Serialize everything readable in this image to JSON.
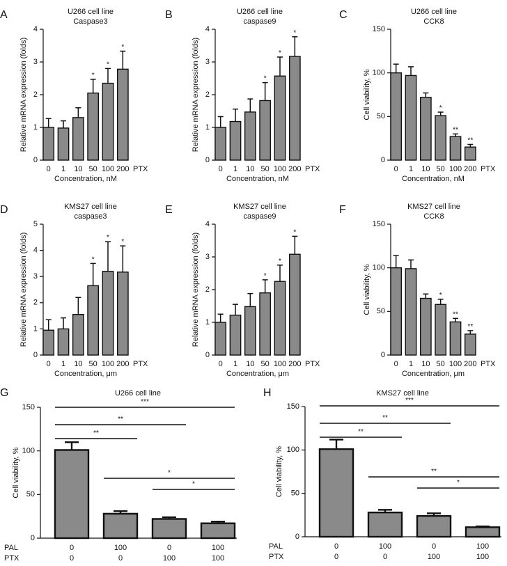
{
  "chart_data": [
    {
      "id": "A",
      "letter": "A",
      "type": "bar",
      "title": "U266 cell line",
      "subtitle": "Caspase3",
      "ylabel": "Relative mRNA expression (folds)",
      "xlabel": "Concentration, nM",
      "extra_label": "PTX",
      "categories": [
        "0",
        "1",
        "10",
        "50",
        "100",
        "200"
      ],
      "values": [
        1.0,
        0.98,
        1.3,
        2.05,
        2.35,
        2.78
      ],
      "errors": [
        0.27,
        0.22,
        0.3,
        0.42,
        0.45,
        0.55
      ],
      "significance": [
        "",
        "",
        "",
        "*",
        "*",
        "*"
      ],
      "ylim": [
        0,
        4
      ],
      "yticks": [
        "0",
        "1",
        "2",
        "3",
        "4"
      ]
    },
    {
      "id": "B",
      "letter": "B",
      "type": "bar",
      "title": "U266 cell line",
      "subtitle": "caspase9",
      "ylabel": "Relative mRNA expression (folds)",
      "xlabel": "Concentration, nM",
      "extra_label": "PTX",
      "categories": [
        "0",
        "1",
        "10",
        "50",
        "100",
        "200"
      ],
      "values": [
        1.0,
        1.18,
        1.47,
        1.82,
        2.57,
        3.17
      ],
      "errors": [
        0.33,
        0.38,
        0.4,
        0.55,
        0.58,
        0.6
      ],
      "significance": [
        "",
        "",
        "",
        "*",
        "*",
        "*"
      ],
      "ylim": [
        0,
        4
      ],
      "yticks": [
        "0",
        "1",
        "2",
        "3",
        "4"
      ]
    },
    {
      "id": "C",
      "letter": "C",
      "type": "bar",
      "title": "U266 cell line",
      "subtitle": "CCK8",
      "ylabel": "Cell viability, %",
      "xlabel": "Concentration, nM",
      "extra_label": "PTX",
      "categories": [
        "0",
        "1",
        "10",
        "50",
        "100",
        "200"
      ],
      "values": [
        100,
        97,
        72,
        51,
        27,
        15
      ],
      "errors": [
        10,
        10,
        5,
        4,
        3,
        3
      ],
      "significance": [
        "",
        "",
        "",
        "*",
        "**",
        "**"
      ],
      "ylim": [
        0,
        150
      ],
      "yticks": [
        "0",
        "50",
        "100",
        "150"
      ]
    },
    {
      "id": "D",
      "letter": "D",
      "type": "bar",
      "title": "KMS27 cell line",
      "subtitle": "caspase3",
      "ylabel": "Relative mRNA expression (folds)",
      "xlabel": "Concentration, μm",
      "extra_label": "PTX",
      "categories": [
        "0",
        "1",
        "10",
        "50",
        "100",
        "200"
      ],
      "values": [
        0.95,
        1.0,
        1.55,
        2.65,
        3.2,
        3.17
      ],
      "errors": [
        0.4,
        0.42,
        0.65,
        0.85,
        1.13,
        1.0
      ],
      "significance": [
        "",
        "",
        "",
        "*",
        "*",
        "*"
      ],
      "ylim": [
        0,
        5
      ],
      "yticks": [
        "0",
        "1",
        "2",
        "3",
        "4",
        "5"
      ]
    },
    {
      "id": "E",
      "letter": "E",
      "type": "bar",
      "title": "KMS27 cell line",
      "subtitle": "caspase9",
      "ylabel": "Relative mRNA expression (folds)",
      "xlabel": "Concentration, μm",
      "extra_label": "PTX",
      "categories": [
        "0",
        "1",
        "10",
        "50",
        "100",
        "200"
      ],
      "values": [
        1.0,
        1.22,
        1.48,
        1.9,
        2.25,
        3.08
      ],
      "errors": [
        0.25,
        0.33,
        0.4,
        0.4,
        0.5,
        0.55
      ],
      "significance": [
        "",
        "",
        "",
        "*",
        "*",
        "*"
      ],
      "ylim": [
        0,
        4
      ],
      "yticks": [
        "0",
        "1",
        "2",
        "3",
        "4"
      ]
    },
    {
      "id": "F",
      "letter": "F",
      "type": "bar",
      "title": "KMS27 cell line",
      "subtitle": "CCK8",
      "ylabel": "Cell viability, %",
      "xlabel": "Concentration, μm",
      "extra_label": "PTX",
      "categories": [
        "0",
        "1",
        "10",
        "50",
        "100",
        "200"
      ],
      "values": [
        100,
        99,
        65,
        58,
        38,
        24
      ],
      "errors": [
        14,
        10,
        5,
        6,
        4,
        4
      ],
      "significance": [
        "",
        "",
        "",
        "*",
        "**",
        "**"
      ],
      "ylim": [
        0,
        150
      ],
      "yticks": [
        "0",
        "50",
        "100",
        "150"
      ]
    },
    {
      "id": "G",
      "letter": "G",
      "type": "bar",
      "title": "U266 cell line",
      "subtitle": "",
      "ylabel": "Cell viability, %",
      "xlabel": "",
      "row_labels": [
        "PAL",
        "PTX"
      ],
      "groups": [
        [
          "0",
          "0"
        ],
        [
          "100",
          "0"
        ],
        [
          "0",
          "100"
        ],
        [
          "100",
          "100"
        ]
      ],
      "values": [
        101,
        28,
        22,
        17
      ],
      "errors": [
        9,
        3,
        2,
        2
      ],
      "comparisons": [
        {
          "from": 0,
          "to": 1,
          "label": "**"
        },
        {
          "from": 0,
          "to": 2,
          "label": "**"
        },
        {
          "from": 0,
          "to": 3,
          "label": "***"
        },
        {
          "from": 1,
          "to": 3,
          "label": "*"
        },
        {
          "from": 2,
          "to": 3,
          "label": "*"
        }
      ],
      "ylim": [
        0,
        150
      ],
      "yticks": [
        "0",
        "50",
        "100",
        "150"
      ]
    },
    {
      "id": "H",
      "letter": "H",
      "type": "bar",
      "title": "KMS27 cell line",
      "subtitle": "",
      "ylabel": "Cell viability, %",
      "xlabel": "",
      "row_labels": [
        "PAL",
        "PTX"
      ],
      "groups": [
        [
          "0",
          "0"
        ],
        [
          "100",
          "0"
        ],
        [
          "0",
          "100"
        ],
        [
          "100",
          "100"
        ]
      ],
      "values": [
        101,
        28,
        24,
        11
      ],
      "errors": [
        11,
        3,
        3,
        1
      ],
      "comparisons": [
        {
          "from": 0,
          "to": 1,
          "label": "**"
        },
        {
          "from": 0,
          "to": 2,
          "label": "**"
        },
        {
          "from": 0,
          "to": 3,
          "label": "***"
        },
        {
          "from": 1,
          "to": 3,
          "label": "**"
        },
        {
          "from": 2,
          "to": 3,
          "label": "*"
        }
      ],
      "ylim": [
        0,
        150
      ],
      "yticks": [
        "0",
        "50",
        "100",
        "150"
      ]
    }
  ]
}
